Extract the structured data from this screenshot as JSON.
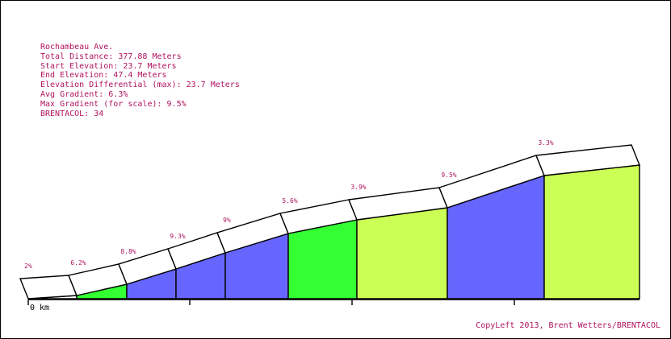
{
  "info": {
    "street": "Rochambeau Ave.",
    "total_distance": "Total Distance: 377.88 Meters",
    "start_elevation": "Start Elevation: 23.7 Meters",
    "end_elevation": "End Elevation: 47.4 Meters",
    "elevation_differential": "Elevation Differential (max): 23.7 Meters",
    "avg_gradient": "Avg Gradient: 6.3%",
    "max_gradient": "Max Gradient (for scale): 9.5%",
    "brentacol": "BRENTACOL: 34"
  },
  "copyright": "CopyLeft 2013, Brent Wetters/BRENTACOL",
  "colors": {
    "text": "#b0135f",
    "gradient_low": "#ccff55",
    "gradient_mid": "#33ff33",
    "gradient_high": "#6666ff",
    "band": "#ffffff",
    "outline": "#000000"
  },
  "chart_data": {
    "type": "area",
    "title": "",
    "xlabel": "",
    "ylabel": "",
    "x_unit": "km",
    "x_tick_labels": [
      "0 km",
      "",
      "",
      ""
    ],
    "segments": [
      {
        "gradient_label": "2%",
        "gradient": 2.0,
        "color": "#ffffff"
      },
      {
        "gradient_label": "6.2%",
        "gradient": 6.2,
        "color": "#33ff33"
      },
      {
        "gradient_label": "8.8%",
        "gradient": 8.8,
        "color": "#6666ff"
      },
      {
        "gradient_label": "9.3%",
        "gradient": 9.3,
        "color": "#6666ff"
      },
      {
        "gradient_label": "9%",
        "gradient": 9.0,
        "color": "#6666ff"
      },
      {
        "gradient_label": "5.6%",
        "gradient": 5.6,
        "color": "#33ff33"
      },
      {
        "gradient_label": "3.9%",
        "gradient": 3.9,
        "color": "#ccff55"
      },
      {
        "gradient_label": "9.5%",
        "gradient": 9.5,
        "color": "#6666ff"
      },
      {
        "gradient_label": "3.3%",
        "gradient": 3.3,
        "color": "#ccff55"
      }
    ],
    "grid": false,
    "legend": "none"
  }
}
